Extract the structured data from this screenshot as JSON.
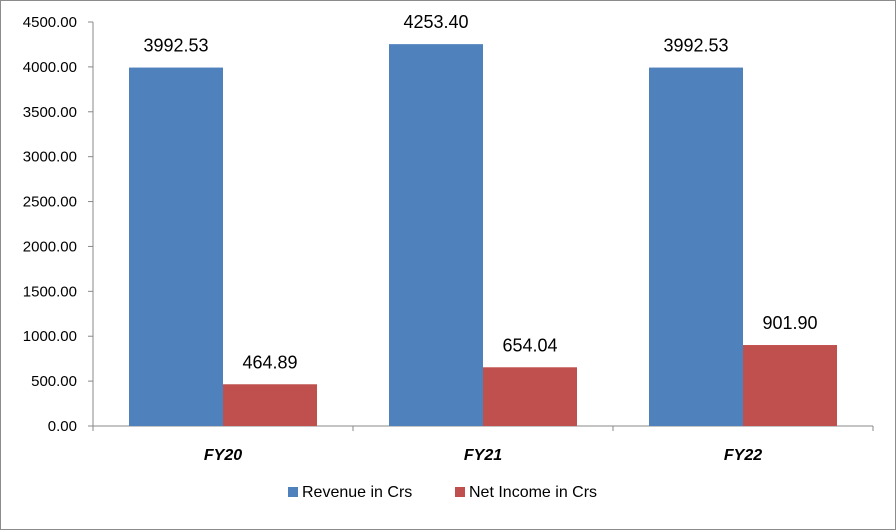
{
  "chart_data": {
    "type": "bar",
    "categories": [
      "FY20",
      "FY21",
      "FY22"
    ],
    "series": [
      {
        "name": "Revenue in Crs",
        "values": [
          3992.53,
          4253.4,
          3992.53
        ],
        "labels": [
          "3992.53",
          "4253.40",
          "3992.53"
        ],
        "color": "#4f81bd"
      },
      {
        "name": "Net Income in Crs",
        "values": [
          464.89,
          654.04,
          901.9
        ],
        "labels": [
          "464.89",
          "654.04",
          "901.90"
        ],
        "color": "#c0504d"
      }
    ],
    "yticks": [
      "0.00",
      "500.00",
      "1000.00",
      "1500.00",
      "2000.00",
      "2500.00",
      "3000.00",
      "3500.00",
      "4000.00",
      "4500.00"
    ],
    "ylim": [
      0,
      4500
    ],
    "grid": false,
    "legend_position": "bottom",
    "title": "",
    "xlabel": "",
    "ylabel": ""
  }
}
